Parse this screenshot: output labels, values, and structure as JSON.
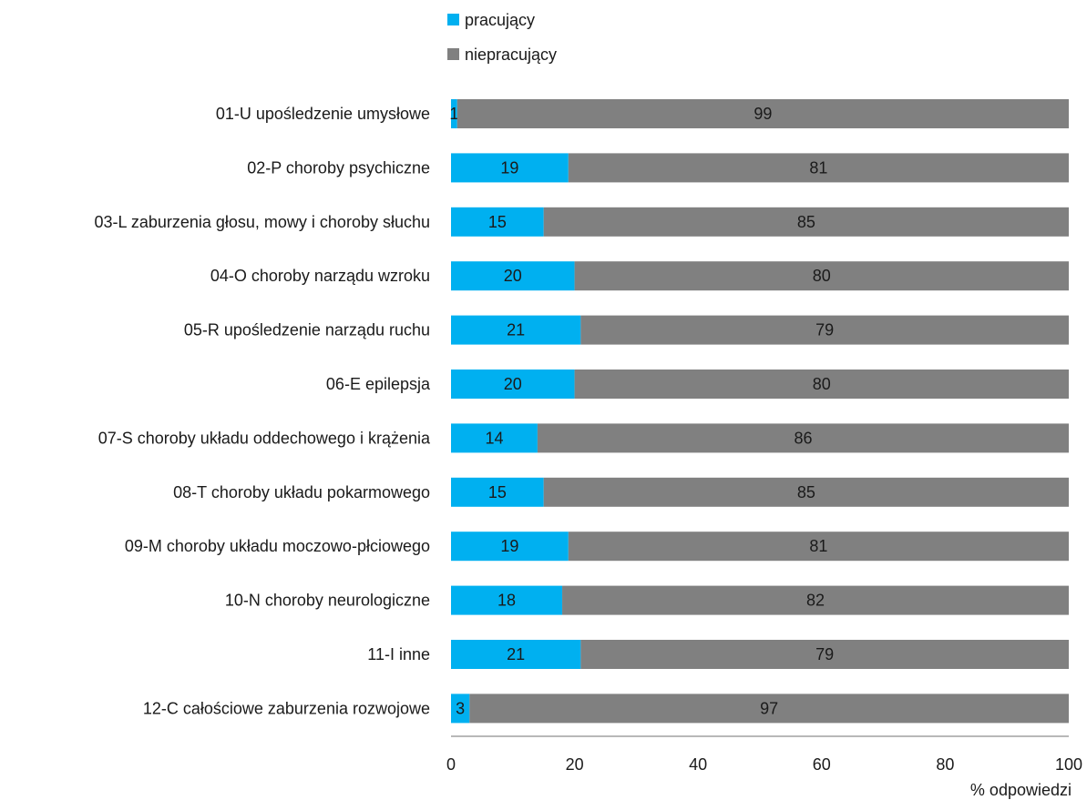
{
  "chart_data": {
    "type": "bar",
    "orientation": "horizontal",
    "stacked": true,
    "categories": [
      "01-U upośledzenie umysłowe",
      "02-P choroby psychiczne",
      "03-L zaburzenia głosu, mowy i choroby słuchu",
      "04-O choroby narządu wzroku",
      "05-R upośledzenie narządu ruchu",
      "06-E epilepsja",
      "07-S choroby układu oddechowego i krążenia",
      "08-T choroby układu pokarmowego",
      "09-M choroby układu moczowo-płciowego",
      "10-N choroby neurologiczne",
      "11-I inne",
      "12-C całościowe zaburzenia rozwojowe"
    ],
    "series": [
      {
        "name": "pracujący",
        "color": "#00B0F0",
        "values": [
          1,
          19,
          15,
          20,
          21,
          20,
          14,
          15,
          19,
          18,
          21,
          3
        ]
      },
      {
        "name": "niepracujący",
        "color": "#808080",
        "values": [
          99,
          81,
          85,
          80,
          79,
          80,
          86,
          85,
          81,
          82,
          79,
          97
        ]
      }
    ],
    "x_ticks": [
      "0",
      "20",
      "40",
      "60",
      "80",
      "100"
    ],
    "xlim": [
      0,
      100
    ],
    "xlabel": "% odpowiedzi",
    "ylabel": "",
    "title": "",
    "grid": false,
    "legend_position": "top"
  }
}
